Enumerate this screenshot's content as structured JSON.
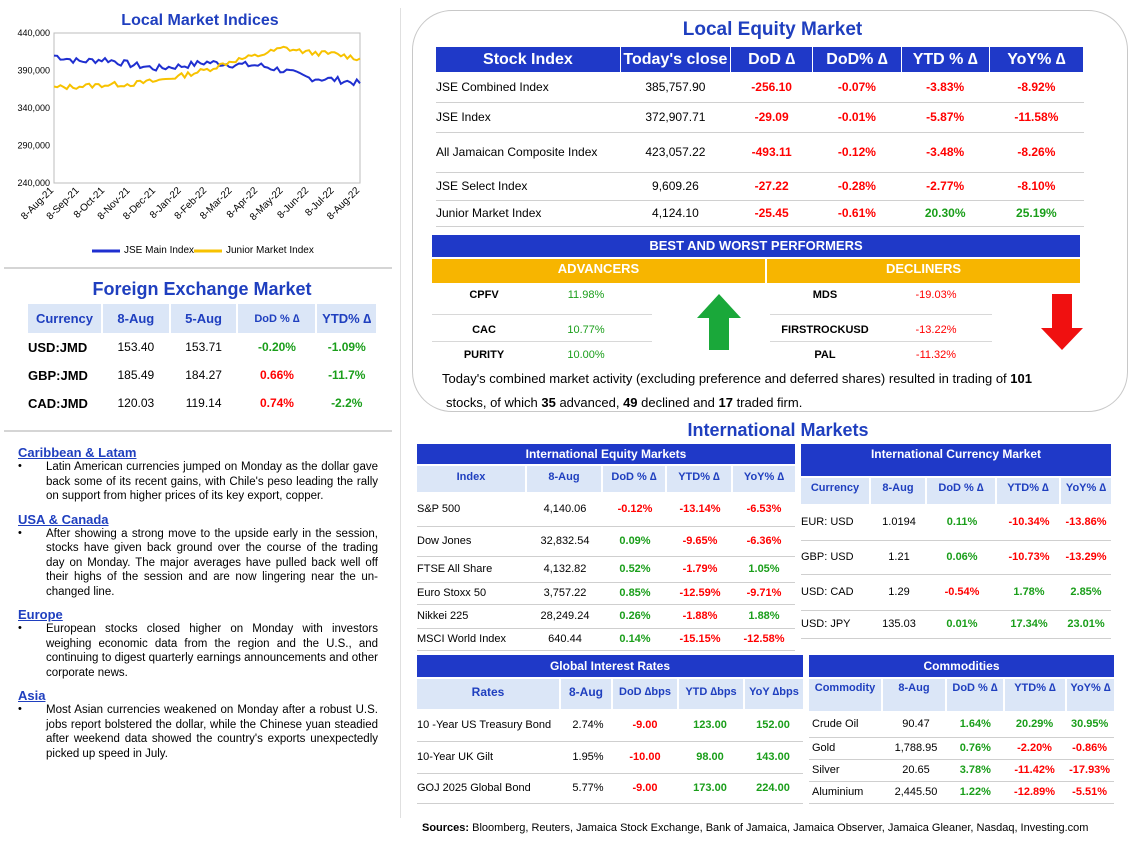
{
  "local_indices": {
    "title": "Local Market Indices",
    "y_ticks": [
      "440,000",
      "390,000",
      "340,000",
      "290,000",
      "240,000"
    ],
    "x_ticks": [
      "8-Aug-21",
      "8-Sep-21",
      "8-Oct-21",
      "8-Nov-21",
      "8-Dec-21",
      "8-Jan-22",
      "8-Feb-22",
      "8-Mar-22",
      "8-Apr-22",
      "8-May-22",
      "8-Jun-22",
      "8-Jul-22",
      "8-Aug-22"
    ],
    "legend": [
      "JSE Main Index",
      "Junior Market Index"
    ],
    "colors": {
      "main": "#1f2fd0",
      "junior": "#f7c200"
    }
  },
  "chart_data": {
    "type": "line",
    "title": "Local Market Indices",
    "x": [
      "8-Aug-21",
      "8-Sep-21",
      "8-Oct-21",
      "8-Nov-21",
      "8-Dec-21",
      "8-Jan-22",
      "8-Feb-22",
      "8-Mar-22",
      "8-Apr-22",
      "8-May-22",
      "8-Jun-22",
      "8-Jul-22",
      "8-Aug-22"
    ],
    "ylim": [
      240000,
      440000
    ],
    "series": [
      {
        "name": "JSE Main Index",
        "values": [
          410000,
          402000,
          405000,
          398000,
          393000,
          396000,
          401000,
          398000,
          397000,
          390000,
          380000,
          378000,
          372908
        ]
      },
      {
        "name": "Junior Market Index",
        "values": [
          367000,
          369000,
          371000,
          372000,
          376000,
          383000,
          391000,
          403000,
          410000,
          420000,
          414000,
          412000,
          406000
        ]
      }
    ],
    "legend_position": "bottom",
    "grid": false
  },
  "fx": {
    "title": "Foreign Exchange Market",
    "headers": [
      "Currency",
      "8-Aug",
      "5-Aug",
      "DoD % ∆",
      "YTD% ∆"
    ],
    "rows": [
      {
        "currency": "USD:JMD",
        "aug8": "153.40",
        "aug5": "153.71",
        "dod": "-0.20%",
        "ytd": "-1.09%"
      },
      {
        "currency": "GBP:JMD",
        "aug8": "185.49",
        "aug5": "184.27",
        "dod": "0.66%",
        "ytd": "-11.7%"
      },
      {
        "currency": "CAD:JMD",
        "aug8": "120.03",
        "aug5": "119.14",
        "dod": "0.74%",
        "ytd": "-2.2%"
      }
    ]
  },
  "news": [
    {
      "heading": "Caribbean & Latam",
      "text": "Latin American currencies jumped on Monday as the dollar gave back some of its recent gains, with Chile's peso leading the rally on support from higher prices of its key export, copper."
    },
    {
      "heading": "USA & Canada",
      "text": "After showing a strong move to the upside early in the session, stocks have given back ground over the course of the trading day on Monday. The major averages have pulled back well off their highs of the session and are now lingering near the un-changed line."
    },
    {
      "heading": "Europe",
      "text": "European stocks closed higher on Monday with investors weighing economic data from the region and the U.S., and continuing to digest quarterly earnings announcements and other corporate news."
    },
    {
      "heading": "Asia",
      "text": "Most Asian currencies weakened on Monday after a robust U.S. jobs report bolstered the dollar, while the Chinese yuan steadied after weekend data showed the country's exports unexpectedly picked up speed in July."
    }
  ],
  "equity": {
    "title": "Local Equity Market",
    "headers": [
      "Stock Index",
      "Today's close",
      "DoD  ∆",
      "DoD% ∆",
      "YTD % ∆",
      "YoY% ∆"
    ],
    "rows": [
      {
        "name": "JSE Combined Index",
        "close": "385,757.90",
        "dod": "-256.10",
        "dodp": "-0.07%",
        "ytd": "-3.83%",
        "yoy": "-8.92%"
      },
      {
        "name": "JSE Index",
        "close": "372,907.71",
        "dod": "-29.09",
        "dodp": "-0.01%",
        "ytd": "-5.87%",
        "yoy": "-11.58%"
      },
      {
        "name": "All Jamaican Composite Index",
        "close": "423,057.22",
        "dod": "-493.11",
        "dodp": "-0.12%",
        "ytd": "-3.48%",
        "yoy": "-8.26%"
      },
      {
        "name": "JSE Select Index",
        "close": "9,609.26",
        "dod": "-27.22",
        "dodp": "-0.28%",
        "ytd": "-2.77%",
        "yoy": "-8.10%"
      },
      {
        "name": "Junior Market Index",
        "close": "4,124.10",
        "dod": "-25.45",
        "dodp": "-0.61%",
        "ytd": "20.30%",
        "yoy": "25.19%"
      }
    ]
  },
  "performers": {
    "title": "BEST AND WORST PERFORMERS",
    "advancers_label": "ADVANCERS",
    "decliners_label": "DECLINERS",
    "advancers": [
      {
        "name": "CPFV",
        "pct": "11.98%"
      },
      {
        "name": "CAC",
        "pct": "10.77%"
      },
      {
        "name": "PURITY",
        "pct": "10.00%"
      }
    ],
    "decliners": [
      {
        "name": "MDS",
        "pct": "-19.03%"
      },
      {
        "name": "FIRSTROCKUSD",
        "pct": "-13.22%"
      },
      {
        "name": "PAL",
        "pct": "-11.32%"
      }
    ],
    "summary": {
      "pre": "Today's combined market activity (excluding preference and deferred shares) resulted in trading of ",
      "total": "101",
      "mid1": "stocks, of which ",
      "adv": "35",
      "mid2": " advanced, ",
      "dec": "49",
      "mid3": " declined and ",
      "firm": "17",
      "post": " traded firm."
    }
  },
  "intl": {
    "title": "International Markets",
    "equity": {
      "title": "International Equity Markets",
      "headers": [
        "Index",
        "8-Aug",
        "DoD % ∆",
        "YTD% ∆",
        "YoY% ∆"
      ],
      "rows": [
        {
          "name": "S&P 500",
          "v": "4,140.06",
          "dod": "-0.12%",
          "ytd": "-13.14%",
          "yoy": "-6.53%"
        },
        {
          "name": "Dow Jones",
          "v": "32,832.54",
          "dod": "0.09%",
          "ytd": "-9.65%",
          "yoy": "-6.36%"
        },
        {
          "name": "FTSE All Share",
          "v": "4,132.82",
          "dod": "0.52%",
          "ytd": "-1.79%",
          "yoy": "1.05%"
        },
        {
          "name": "Euro Stoxx 50",
          "v": "3,757.22",
          "dod": "0.85%",
          "ytd": "-12.59%",
          "yoy": "-9.71%"
        },
        {
          "name": "Nikkei 225",
          "v": "28,249.24",
          "dod": "0.26%",
          "ytd": "-1.88%",
          "yoy": "1.88%"
        },
        {
          "name": "MSCI World Index",
          "v": "640.44",
          "dod": "0.14%",
          "ytd": "-15.15%",
          "yoy": "-12.58%"
        }
      ]
    },
    "currency": {
      "title": "International Currency Market",
      "headers": [
        "Currency",
        "8-Aug",
        "DoD % ∆",
        "YTD% ∆",
        "YoY% ∆"
      ],
      "rows": [
        {
          "name": "EUR: USD",
          "v": "1.0194",
          "dod": "0.11%",
          "ytd": "-10.34%",
          "yoy": "-13.86%"
        },
        {
          "name": "GBP: USD",
          "v": "1.21",
          "dod": "0.06%",
          "ytd": "-10.73%",
          "yoy": "-13.29%"
        },
        {
          "name": "USD: CAD",
          "v": "1.29",
          "dod": "-0.54%",
          "ytd": "1.78%",
          "yoy": "2.85%"
        },
        {
          "name": "USD: JPY",
          "v": "135.03",
          "dod": "0.01%",
          "ytd": "17.34%",
          "yoy": "23.01%"
        }
      ]
    },
    "rates": {
      "title": "Global Interest Rates",
      "headers": [
        "Rates",
        "8-Aug",
        "DoD ∆bps",
        "YTD ∆bps",
        "YoY ∆bps"
      ],
      "rows": [
        {
          "name": "10 -Year US Treasury Bond",
          "v": "2.74%",
          "dod": "-9.00",
          "ytd": "123.00",
          "yoy": "152.00"
        },
        {
          "name": "10-Year UK Gilt",
          "v": "1.95%",
          "dod": "-10.00",
          "ytd": "98.00",
          "yoy": "143.00"
        },
        {
          "name": "GOJ 2025 Global Bond",
          "v": "5.77%",
          "dod": "-9.00",
          "ytd": "173.00",
          "yoy": "224.00"
        }
      ]
    },
    "commodities": {
      "title": "Commodities",
      "headers": [
        "Commodity",
        "8-Aug",
        "DoD % ∆",
        "YTD% ∆",
        "YoY% ∆"
      ],
      "rows": [
        {
          "name": "Crude Oil",
          "v": "90.47",
          "dod": "1.64%",
          "ytd": "20.29%",
          "yoy": "30.95%"
        },
        {
          "name": "Gold",
          "v": "1,788.95",
          "dod": "0.76%",
          "ytd": "-2.20%",
          "yoy": "-0.86%"
        },
        {
          "name": "Silver",
          "v": "20.65",
          "dod": "3.78%",
          "ytd": "-11.42%",
          "yoy": "-17.93%"
        },
        {
          "name": "Aluminium",
          "v": "2,445.50",
          "dod": "1.22%",
          "ytd": "-12.89%",
          "yoy": "-5.51%"
        }
      ]
    }
  },
  "sources": {
    "label": "Sources:",
    "text": " Bloomberg, Reuters, Jamaica Stock Exchange, Bank of Jamaica, Jamaica Observer, Jamaica Gleaner, Nasdaq, Investing.com"
  }
}
